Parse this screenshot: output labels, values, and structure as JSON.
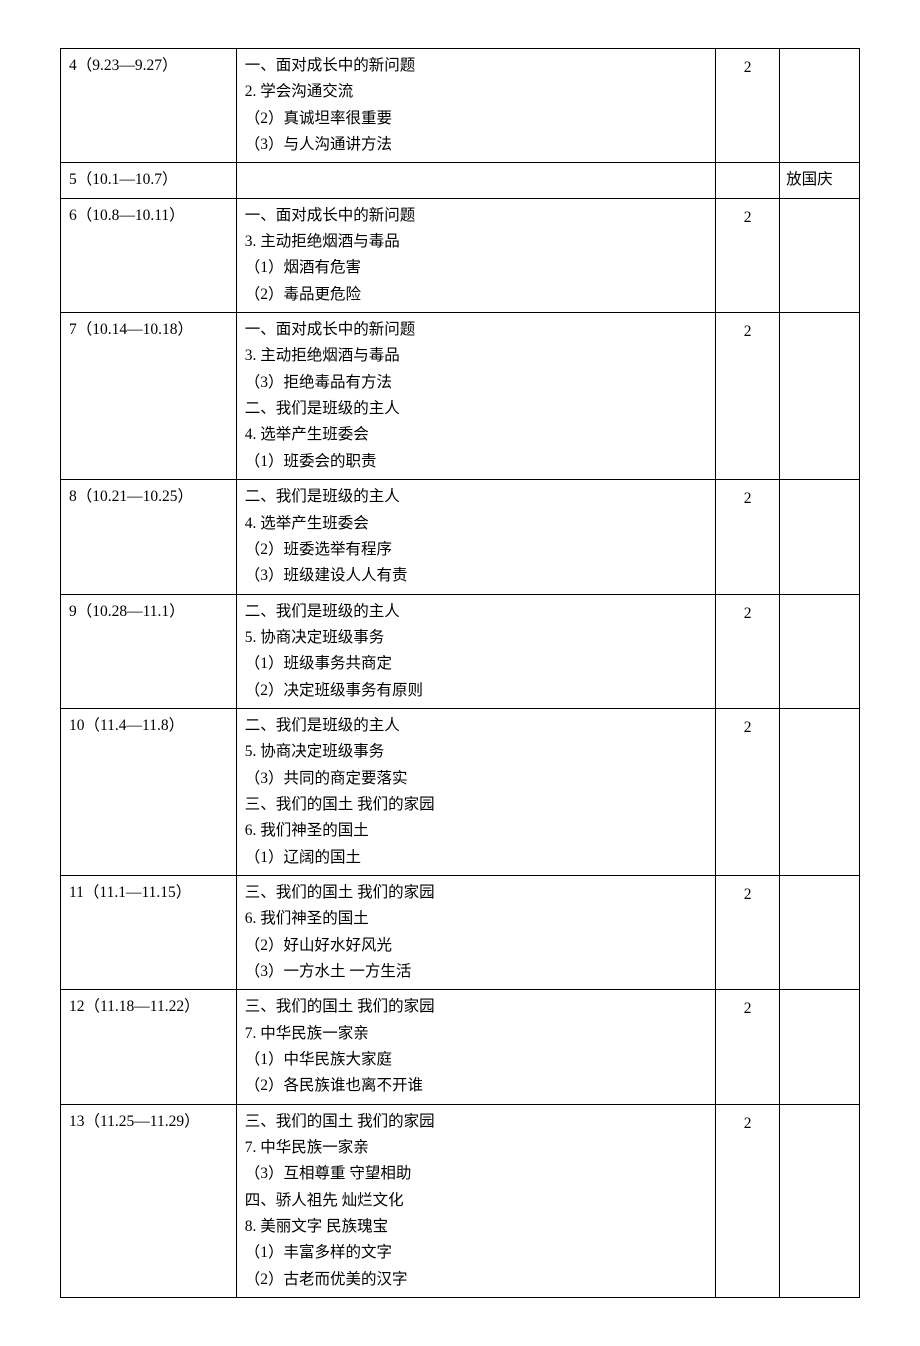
{
  "rows": [
    {
      "week": "4（9.23—9.27）",
      "lines": [
        "一、面对成长中的新问题",
        "2. 学会沟通交流",
        "（2）真诚坦率很重要",
        "（3）与人沟通讲方法"
      ],
      "hours": "2",
      "note": ""
    },
    {
      "week": "5（10.1—10.7）",
      "lines": [],
      "hours": "",
      "note": "放国庆"
    },
    {
      "week": "6（10.8—10.11）",
      "lines": [
        "一、面对成长中的新问题",
        "3. 主动拒绝烟酒与毒品",
        "（1）烟酒有危害",
        "（2）毒品更危险"
      ],
      "hours": "2",
      "note": ""
    },
    {
      "week": "7（10.14—10.18）",
      "lines": [
        "一、面对成长中的新问题",
        "3. 主动拒绝烟酒与毒品",
        "（3）拒绝毒品有方法",
        "二、我们是班级的主人",
        "4. 选举产生班委会",
        "（1）班委会的职责"
      ],
      "hours": "2",
      "note": ""
    },
    {
      "week": "8（10.21—10.25）",
      "lines": [
        "二、我们是班级的主人",
        "4. 选举产生班委会",
        "（2）班委选举有程序",
        "（3）班级建设人人有责"
      ],
      "hours": "2",
      "note": ""
    },
    {
      "week": "9（10.28—11.1）",
      "lines": [
        "二、我们是班级的主人",
        "5. 协商决定班级事务",
        "（1）班级事务共商定",
        "（2）决定班级事务有原则"
      ],
      "hours": "2",
      "note": ""
    },
    {
      "week": "10（11.4—11.8）",
      "lines": [
        "二、我们是班级的主人",
        "5. 协商决定班级事务",
        "（3）共同的商定要落实",
        "三、我们的国土  我们的家园",
        "6. 我们神圣的国土",
        "（1）辽阔的国土"
      ],
      "hours": "2",
      "note": ""
    },
    {
      "week": "11（11.1—11.15）",
      "lines": [
        "三、我们的国土  我们的家园",
        "6. 我们神圣的国土",
        "（2）好山好水好风光",
        "（3）一方水土  一方生活"
      ],
      "hours": "2",
      "note": ""
    },
    {
      "week": "12（11.18—11.22）",
      "lines": [
        "三、我们的国土  我们的家园",
        "7. 中华民族一家亲",
        "（1）中华民族大家庭",
        "（2）各民族谁也离不开谁"
      ],
      "hours": "2",
      "note": ""
    },
    {
      "week": "13（11.25—11.29）",
      "lines": [
        "三、我们的国土  我们的家园",
        "7. 中华民族一家亲",
        "（3）互相尊重  守望相助",
        "四、骄人祖先  灿烂文化",
        "8. 美丽文字  民族瑰宝",
        "（1）丰富多样的文字",
        "（2）古老而优美的汉字"
      ],
      "hours": "2",
      "note": ""
    }
  ]
}
